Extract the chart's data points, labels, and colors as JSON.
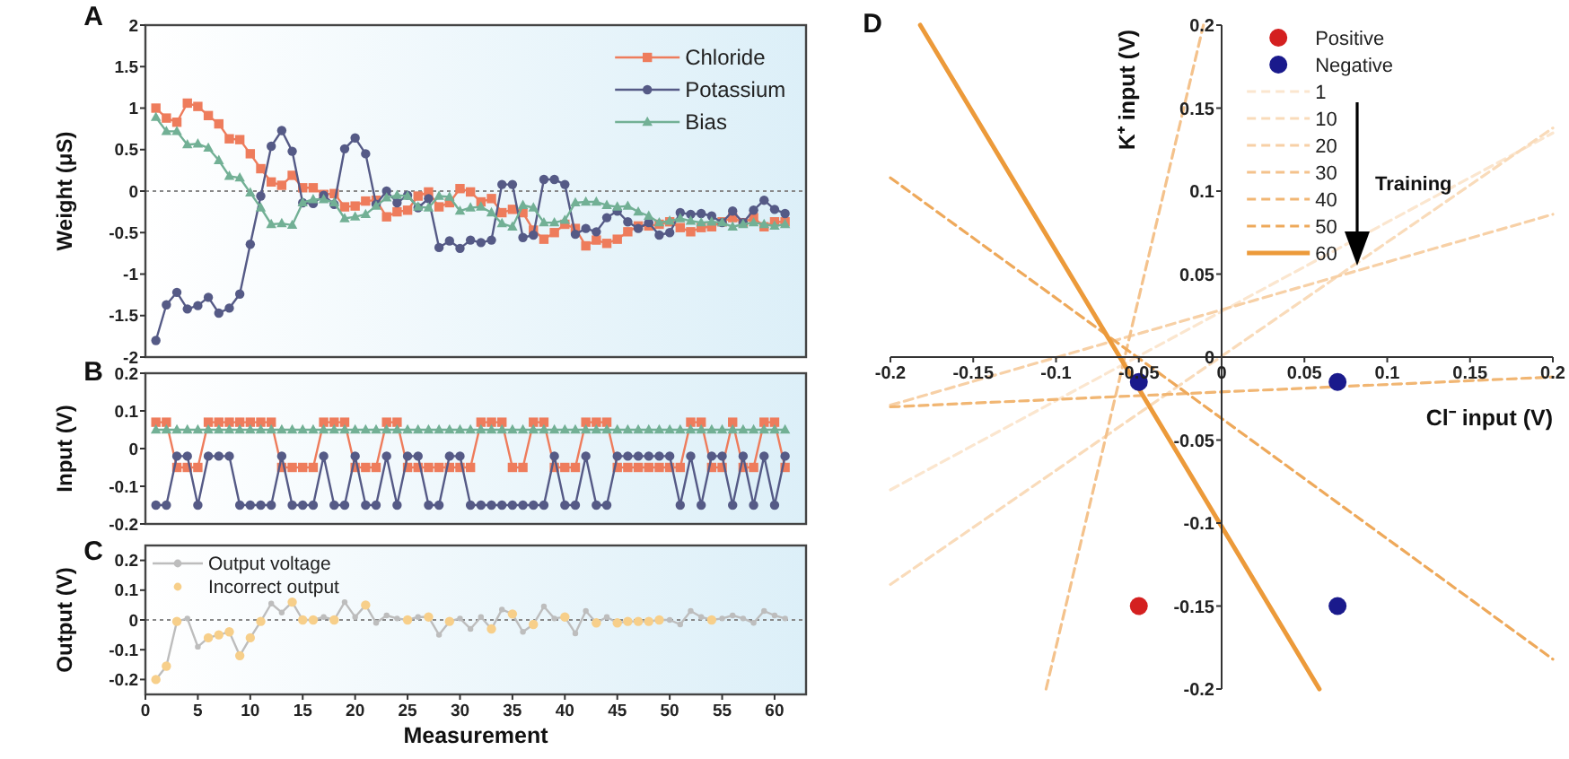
{
  "chart_data": [
    {
      "type": "line",
      "ylabel": "Weight (μS)",
      "annotations": [
        "A"
      ],
      "xlim": [
        0,
        63
      ],
      "ylim": [
        -2,
        2
      ],
      "yticks": [
        -2,
        -1.5,
        -1,
        -0.5,
        0,
        0.5,
        1,
        1.5,
        2
      ],
      "tick_labels": "y",
      "legend": "top right",
      "x": [
        1,
        2,
        3,
        4,
        5,
        6,
        7,
        8,
        9,
        10,
        11,
        12,
        13,
        14,
        15,
        16,
        17,
        18,
        19,
        20,
        21,
        22,
        23,
        24,
        25,
        26,
        27,
        28,
        29,
        30,
        31,
        32,
        33,
        34,
        35,
        36,
        37,
        38,
        39,
        40,
        41,
        42,
        43,
        44,
        45,
        46,
        47,
        48,
        49,
        50,
        51,
        52,
        53,
        54,
        55,
        56,
        57,
        58,
        59,
        60,
        61
      ],
      "ref_lines": [
        {
          "axis": "y",
          "value": 0,
          "line_style": "dotted",
          "color": "#888888"
        }
      ],
      "series": [
        {
          "name": "Chloride",
          "color": "#ee7c5c",
          "marker": "square",
          "values": [
            1.0,
            0.88,
            0.83,
            1.06,
            1.02,
            0.91,
            0.81,
            0.63,
            0.62,
            0.45,
            0.27,
            0.11,
            0.07,
            0.19,
            0.04,
            0.04,
            -0.04,
            -0.03,
            -0.19,
            -0.18,
            -0.12,
            -0.11,
            -0.31,
            -0.25,
            -0.23,
            -0.06,
            -0.01,
            -0.19,
            -0.14,
            0.03,
            -0.01,
            -0.13,
            -0.09,
            -0.26,
            -0.22,
            -0.26,
            -0.47,
            -0.58,
            -0.5,
            -0.4,
            -0.45,
            -0.66,
            -0.59,
            -0.63,
            -0.58,
            -0.49,
            -0.42,
            -0.42,
            -0.4,
            -0.37,
            -0.44,
            -0.49,
            -0.44,
            -0.43,
            -0.37,
            -0.32,
            -0.38,
            -0.32,
            -0.43,
            -0.37,
            -0.37
          ]
        },
        {
          "name": "Potassium",
          "color": "#555a86",
          "marker": "circle",
          "values": [
            -1.8,
            -1.37,
            -1.22,
            -1.42,
            -1.38,
            -1.28,
            -1.47,
            -1.41,
            -1.24,
            -0.64,
            -0.06,
            0.54,
            0.73,
            0.48,
            -0.14,
            -0.15,
            -0.05,
            -0.16,
            0.51,
            0.64,
            0.45,
            -0.16,
            0.0,
            -0.14,
            -0.05,
            -0.2,
            -0.09,
            -0.68,
            -0.6,
            -0.69,
            -0.59,
            -0.62,
            -0.59,
            0.08,
            0.08,
            -0.56,
            -0.53,
            0.14,
            0.14,
            0.08,
            -0.52,
            -0.45,
            -0.49,
            -0.32,
            -0.24,
            -0.37,
            -0.45,
            -0.38,
            -0.53,
            -0.5,
            -0.26,
            -0.28,
            -0.27,
            -0.3,
            -0.38,
            -0.24,
            -0.38,
            -0.23,
            -0.11,
            -0.22,
            -0.27
          ]
        },
        {
          "name": "Bias",
          "color": "#72b095",
          "marker": "triangle",
          "values": [
            0.89,
            0.72,
            0.72,
            0.56,
            0.57,
            0.52,
            0.37,
            0.18,
            0.16,
            -0.02,
            -0.2,
            -0.4,
            -0.39,
            -0.41,
            -0.14,
            -0.1,
            -0.1,
            -0.14,
            -0.33,
            -0.31,
            -0.28,
            -0.18,
            -0.08,
            -0.05,
            -0.06,
            -0.19,
            -0.2,
            -0.06,
            -0.07,
            -0.24,
            -0.2,
            -0.19,
            -0.26,
            -0.39,
            -0.43,
            -0.17,
            -0.2,
            -0.38,
            -0.38,
            -0.35,
            -0.14,
            -0.13,
            -0.13,
            -0.17,
            -0.19,
            -0.18,
            -0.25,
            -0.3,
            -0.38,
            -0.36,
            -0.33,
            -0.36,
            -0.38,
            -0.37,
            -0.38,
            -0.43,
            -0.4,
            -0.38,
            -0.4,
            -0.42,
            -0.4
          ]
        }
      ]
    },
    {
      "type": "line",
      "ylabel": "Input (V)",
      "annotations": [
        "B"
      ],
      "xlim": [
        0,
        63
      ],
      "ylim": [
        -0.2,
        0.2
      ],
      "yticks": [
        -0.2,
        -0.1,
        0,
        0.1,
        0.2
      ],
      "tick_labels": "y",
      "x": [
        1,
        2,
        3,
        4,
        5,
        6,
        7,
        8,
        9,
        10,
        11,
        12,
        13,
        14,
        15,
        16,
        17,
        18,
        19,
        20,
        21,
        22,
        23,
        24,
        25,
        26,
        27,
        28,
        29,
        30,
        31,
        32,
        33,
        34,
        35,
        36,
        37,
        38,
        39,
        40,
        41,
        42,
        43,
        44,
        45,
        46,
        47,
        48,
        49,
        50,
        51,
        52,
        53,
        54,
        55,
        56,
        57,
        58,
        59,
        60,
        61
      ],
      "series": [
        {
          "color": "#ee7c5c",
          "marker": "square",
          "values": [
            0.07,
            0.07,
            -0.05,
            -0.05,
            -0.05,
            0.07,
            0.07,
            0.07,
            0.07,
            0.07,
            0.07,
            0.07,
            -0.05,
            -0.05,
            -0.05,
            -0.05,
            0.07,
            0.07,
            0.07,
            -0.05,
            -0.05,
            -0.05,
            0.07,
            0.07,
            -0.05,
            -0.05,
            -0.05,
            -0.05,
            -0.05,
            -0.05,
            -0.05,
            0.07,
            0.07,
            0.07,
            -0.05,
            -0.05,
            0.07,
            0.07,
            -0.05,
            -0.05,
            -0.05,
            0.07,
            0.07,
            0.07,
            -0.05,
            -0.05,
            -0.05,
            -0.05,
            -0.05,
            -0.05,
            -0.05,
            0.07,
            0.07,
            -0.05,
            -0.05,
            0.07,
            -0.05,
            -0.05,
            0.07,
            0.07,
            -0.05
          ]
        },
        {
          "color": "#555a86",
          "marker": "circle",
          "values": [
            -0.15,
            -0.15,
            -0.02,
            -0.02,
            -0.15,
            -0.02,
            -0.02,
            -0.02,
            -0.15,
            -0.15,
            -0.15,
            -0.15,
            -0.02,
            -0.15,
            -0.15,
            -0.15,
            -0.02,
            -0.15,
            -0.15,
            -0.02,
            -0.15,
            -0.15,
            -0.02,
            -0.15,
            -0.02,
            -0.02,
            -0.15,
            -0.15,
            -0.02,
            -0.02,
            -0.15,
            -0.15,
            -0.15,
            -0.15,
            -0.15,
            -0.15,
            -0.15,
            -0.15,
            -0.02,
            -0.15,
            -0.15,
            -0.02,
            -0.15,
            -0.15,
            -0.02,
            -0.02,
            -0.02,
            -0.02,
            -0.02,
            -0.02,
            -0.15,
            -0.02,
            -0.15,
            -0.02,
            -0.02,
            -0.15,
            -0.02,
            -0.15,
            -0.02,
            -0.15,
            -0.02
          ]
        },
        {
          "color": "#72b095",
          "marker": "triangle",
          "values": [
            0.05,
            0.05,
            0.05,
            0.05,
            0.05,
            0.05,
            0.05,
            0.05,
            0.05,
            0.05,
            0.05,
            0.05,
            0.05,
            0.05,
            0.05,
            0.05,
            0.05,
            0.05,
            0.05,
            0.05,
            0.05,
            0.05,
            0.05,
            0.05,
            0.05,
            0.05,
            0.05,
            0.05,
            0.05,
            0.05,
            0.05,
            0.05,
            0.05,
            0.05,
            0.05,
            0.05,
            0.05,
            0.05,
            0.05,
            0.05,
            0.05,
            0.05,
            0.05,
            0.05,
            0.05,
            0.05,
            0.05,
            0.05,
            0.05,
            0.05,
            0.05,
            0.05,
            0.05,
            0.05,
            0.05,
            0.05,
            0.05,
            0.05,
            0.05,
            0.05,
            0.05
          ]
        }
      ]
    },
    {
      "type": "line",
      "ylabel": "Output (V)",
      "xlabel": "Measurement",
      "annotations": [
        "C"
      ],
      "xlim": [
        0,
        63
      ],
      "xticks": [
        0,
        5,
        10,
        15,
        20,
        25,
        30,
        35,
        40,
        45,
        50,
        55,
        60
      ],
      "ylim": [
        -0.25,
        0.25
      ],
      "yticks": [
        -0.2,
        -0.1,
        0,
        0.1,
        0.2
      ],
      "legend": "top left",
      "x": [
        1,
        2,
        3,
        4,
        5,
        6,
        7,
        8,
        9,
        10,
        11,
        12,
        13,
        14,
        15,
        16,
        17,
        18,
        19,
        20,
        21,
        22,
        23,
        24,
        25,
        26,
        27,
        28,
        29,
        30,
        31,
        32,
        33,
        34,
        35,
        36,
        37,
        38,
        39,
        40,
        41,
        42,
        43,
        44,
        45,
        46,
        47,
        48,
        49,
        50,
        51,
        52,
        53,
        54,
        55,
        56,
        57,
        58,
        59,
        60,
        61
      ],
      "ref_lines": [
        {
          "axis": "y",
          "value": 0,
          "line_style": "dotted",
          "color": "#888888"
        }
      ],
      "series": [
        {
          "name": "Output voltage",
          "color": "#bdbdbd",
          "marker": "circle",
          "values": [
            -0.2,
            -0.155,
            -0.005,
            0.005,
            -0.09,
            -0.06,
            -0.05,
            -0.04,
            -0.12,
            -0.06,
            -0.005,
            0.055,
            0.025,
            0.06,
            0,
            0,
            0.01,
            0,
            0.06,
            0.01,
            0.05,
            -0.01,
            0.015,
            0.005,
            0,
            0.01,
            0.01,
            -0.05,
            -0.005,
            0.005,
            -0.03,
            0.01,
            -0.03,
            0.035,
            0.02,
            -0.04,
            -0.015,
            0.045,
            0.005,
            0.01,
            -0.045,
            0.03,
            -0.01,
            0.01,
            -0.01,
            -0.005,
            -0.005,
            -0.005,
            0,
            0,
            -0.015,
            0.03,
            0.01,
            0,
            0.005,
            0.015,
            0.005,
            -0.01,
            0.03,
            0.015,
            0.005
          ]
        },
        {
          "name": "Incorrect output",
          "type": "scatter",
          "color": "#f7cf8a",
          "marker": "circle",
          "x": [
            1,
            2,
            3,
            6,
            7,
            8,
            9,
            10,
            11,
            14,
            15,
            16,
            18,
            21,
            25,
            27,
            29,
            33,
            35,
            37,
            40,
            43,
            45,
            46,
            47,
            48,
            49,
            54
          ],
          "values": [
            -0.2,
            -0.155,
            -0.005,
            -0.06,
            -0.05,
            -0.04,
            -0.12,
            -0.06,
            -0.005,
            0.06,
            0,
            0,
            0,
            0.05,
            0,
            0.01,
            -0.005,
            -0.03,
            0.02,
            -0.015,
            0.01,
            -0.01,
            -0.01,
            -0.005,
            -0.005,
            -0.005,
            0,
            0
          ]
        }
      ]
    },
    {
      "type": "scatter",
      "xlabel": "Cl⁻ input (V)",
      "ylabel": "K⁺ input (V)",
      "annotations": [
        "D",
        "Training"
      ],
      "xlim": [
        -0.2,
        0.2
      ],
      "xticks": [
        -0.2,
        -0.15,
        -0.1,
        -0.05,
        0,
        0.05,
        0.1,
        0.15,
        0.2
      ],
      "ylim": [
        -0.2,
        0.2
      ],
      "yticks": [
        -0.2,
        -0.15,
        -0.1,
        -0.05,
        0,
        0.05,
        0.1,
        0.15,
        0.2
      ],
      "legend": "top right",
      "series": [
        {
          "name": "Positive",
          "color": "#d42020",
          "marker": "circle",
          "x": [
            -0.05
          ],
          "values": [
            -0.15
          ]
        },
        {
          "name": "Negative",
          "color": "#1a1a8c",
          "marker": "circle",
          "x": [
            -0.05,
            0.07,
            0.07
          ],
          "values": [
            -0.015,
            -0.015,
            -0.15
          ]
        },
        {
          "name": "1",
          "type": "line",
          "color": "#fbe6cf",
          "line_style": "dashed",
          "x": [
            -0.2,
            0.2
          ],
          "values": [
            -0.08,
            0.135
          ]
        },
        {
          "name": "10",
          "type": "line",
          "color": "#f9dbba",
          "line_style": "dashed",
          "x": [
            -0.2,
            0.2
          ],
          "values": [
            -0.137,
            0.138
          ]
        },
        {
          "name": "20",
          "type": "line",
          "color": "#f7d0a6",
          "line_style": "dashed",
          "x": [
            -0.2,
            0.2
          ],
          "values": [
            -0.029,
            0.086
          ]
        },
        {
          "name": "30",
          "type": "line",
          "color": "#f4c28c",
          "line_style": "dashed",
          "x": [
            -0.106,
            -0.011
          ],
          "values": [
            -0.2,
            0.2
          ]
        },
        {
          "name": "40",
          "type": "line",
          "color": "#f1b673",
          "line_style": "dashed",
          "x": [
            -0.2,
            0.2
          ],
          "values": [
            -0.03,
            -0.012
          ]
        },
        {
          "name": "50",
          "type": "line",
          "color": "#eea95b",
          "line_style": "dashed",
          "x": [
            -0.2,
            0.2
          ],
          "values": [
            0.108,
            -0.182
          ]
        },
        {
          "name": "60",
          "type": "line",
          "color": "#ec9a3a",
          "line_style": "solid",
          "x": [
            -0.182,
            0.059
          ],
          "values": [
            0.2,
            -0.2
          ]
        }
      ]
    }
  ]
}
